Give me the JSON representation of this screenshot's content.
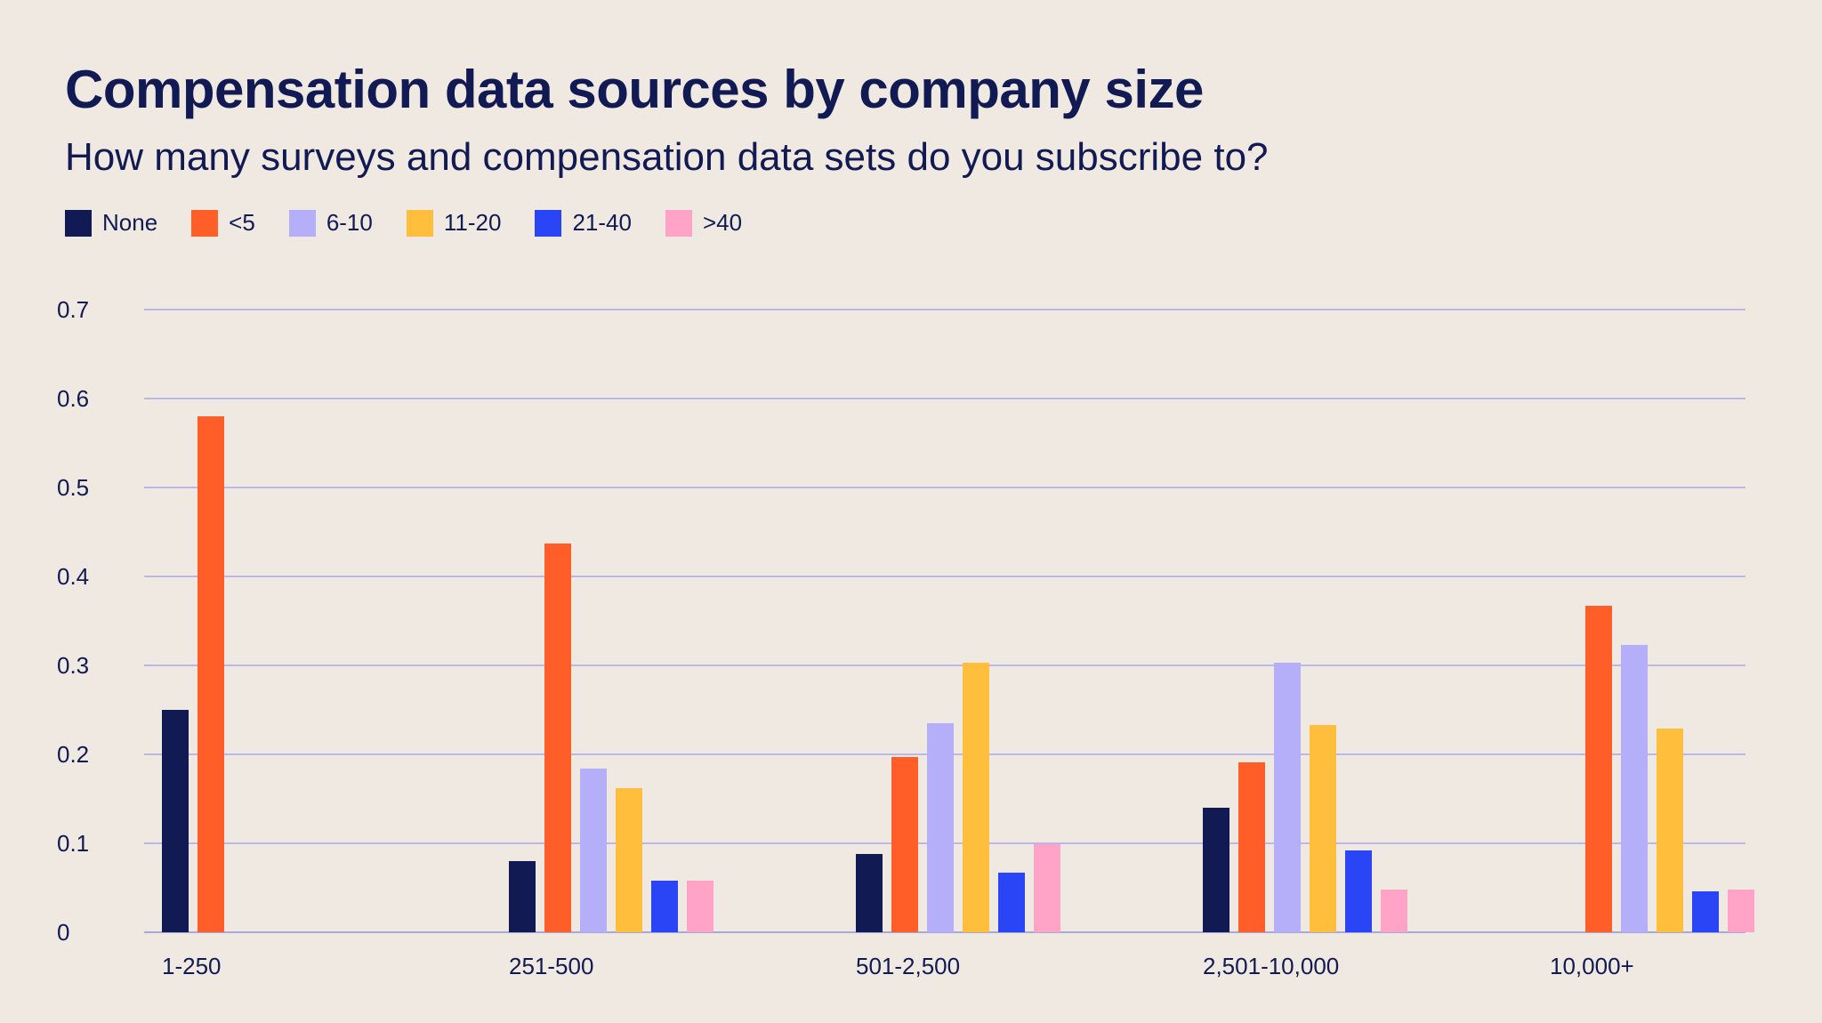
{
  "title": "Compensation data sources by company size",
  "subtitle": "How many surveys and compensation data sets do you subscribe to?",
  "chart_data": {
    "type": "bar",
    "title": "Compensation data sources by company size",
    "subtitle": "How many surveys and compensation data sets do you subscribe to?",
    "categories": [
      "1-250",
      "251-500",
      "501-2,500",
      "2,501-10,000",
      "10,000+"
    ],
    "ylim": [
      0,
      0.7
    ],
    "yticks": [
      "0",
      "0.1",
      "0.2",
      "0.3",
      "0.4",
      "0.5",
      "0.6",
      "0.7"
    ],
    "grid": true,
    "legend_position": "top-left",
    "series": [
      {
        "name": "None",
        "color": "#111a52",
        "values": [
          0.25,
          0.08,
          0.088,
          0.14,
          0
        ]
      },
      {
        "name": "<5",
        "color": "#ff5e28",
        "values": [
          0.58,
          0.437,
          0.197,
          0.191,
          0.367
        ]
      },
      {
        "name": "6-10",
        "color": "#b5aef8",
        "values": [
          0,
          0.184,
          0.235,
          0.303,
          0.323
        ]
      },
      {
        "name": "11-20",
        "color": "#ffbf3c",
        "values": [
          0,
          0.162,
          0.303,
          0.233,
          0.229
        ]
      },
      {
        "name": "21-40",
        "color": "#2a45f5",
        "values": [
          0,
          0.058,
          0.067,
          0.092,
          0.046
        ]
      },
      {
        "name": ">40",
        "color": "#ffa4c6",
        "values": [
          0,
          0.058,
          0.099,
          0.048,
          0.048
        ]
      }
    ]
  }
}
